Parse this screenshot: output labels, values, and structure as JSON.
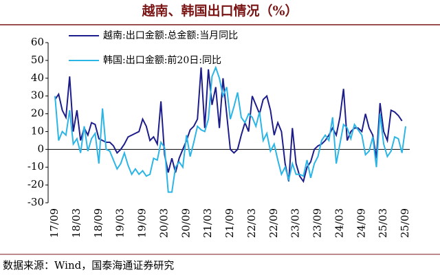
{
  "chart_data": {
    "type": "line",
    "title": "越南、韩国出口情况（%）",
    "source": "数据来源：Wind，国泰海通证券研究",
    "categories": [
      "17/09",
      null,
      null,
      null,
      null,
      null,
      "18/03",
      null,
      null,
      null,
      null,
      null,
      "18/09",
      null,
      null,
      null,
      null,
      null,
      "19/03",
      null,
      null,
      null,
      null,
      null,
      "19/09",
      null,
      null,
      null,
      null,
      null,
      "20/03",
      null,
      null,
      null,
      null,
      null,
      "20/09",
      null,
      null,
      null,
      null,
      null,
      "21/03",
      null,
      null,
      null,
      null,
      null,
      "21/09",
      null,
      null,
      null,
      null,
      null,
      "22/03",
      null,
      null,
      null,
      null,
      null,
      "22/09",
      null,
      null,
      null,
      null,
      null,
      "23/03",
      null,
      null,
      null,
      null,
      null,
      "23/09",
      null,
      null,
      null,
      null,
      null,
      "24/03",
      null,
      null,
      null,
      null,
      null,
      "24/09",
      null,
      null,
      null,
      null,
      null,
      "25/03",
      null,
      null,
      null,
      null,
      null,
      "25/09"
    ],
    "series": [
      {
        "name": "越南:出口金额:总金额:当月同比",
        "color": "#1c1c8a",
        "values": [
          28,
          31,
          22,
          18,
          41,
          10,
          22,
          5,
          12,
          8,
          15,
          14,
          6,
          5,
          4,
          4,
          2,
          -2,
          0,
          3,
          7,
          8,
          9,
          10,
          17,
          13,
          5,
          7,
          3,
          27,
          -3,
          -13,
          -5,
          -13,
          -5,
          0,
          5,
          11,
          13,
          17,
          46,
          12,
          45,
          25,
          35,
          12,
          40,
          20,
          0,
          -2,
          0,
          8,
          15,
          10,
          30,
          25,
          20,
          28,
          30,
          22,
          8,
          15,
          10,
          -8,
          -18,
          12,
          -8,
          -15,
          -18,
          -10,
          -7,
          0,
          2,
          3,
          5,
          8,
          12,
          8,
          18,
          34,
          5,
          10,
          12,
          12,
          10,
          20,
          12,
          8,
          -5,
          26,
          10,
          5,
          22,
          21,
          19,
          16,
          null
        ]
      },
      {
        "name": "韩国:出口金额:前20日:同比",
        "color": "#2bb5e6",
        "values": [
          30,
          5,
          10,
          8,
          22,
          3,
          6,
          -2,
          13,
          -1,
          6,
          9,
          -8,
          23,
          0,
          -1,
          -6,
          -11,
          -8,
          -2,
          -9,
          -14,
          -11,
          -14,
          -12,
          -15,
          -14,
          -5,
          -6,
          4,
          1,
          -24,
          -24,
          -10,
          -7,
          -10,
          8,
          -4,
          4,
          13,
          11,
          10,
          17,
          41,
          46,
          40,
          30,
          35,
          17,
          24,
          32,
          18,
          15,
          20,
          18,
          13,
          21,
          5,
          9,
          -1,
          3,
          -6,
          -14,
          -10,
          -17,
          -8,
          -14,
          -14,
          -15,
          -6,
          -16,
          -8,
          -4,
          5,
          8,
          5,
          18,
          -8,
          3,
          14,
          12,
          6,
          14,
          11,
          8,
          -3,
          -1,
          7,
          -10,
          20,
          3,
          -4,
          -1,
          7,
          6,
          -2,
          13
        ]
      }
    ],
    "ylim": [
      -30,
      60
    ],
    "yticks": [
      -30,
      -20,
      -10,
      0,
      10,
      20,
      30,
      40,
      50,
      60
    ],
    "legend": "upper-left"
  }
}
